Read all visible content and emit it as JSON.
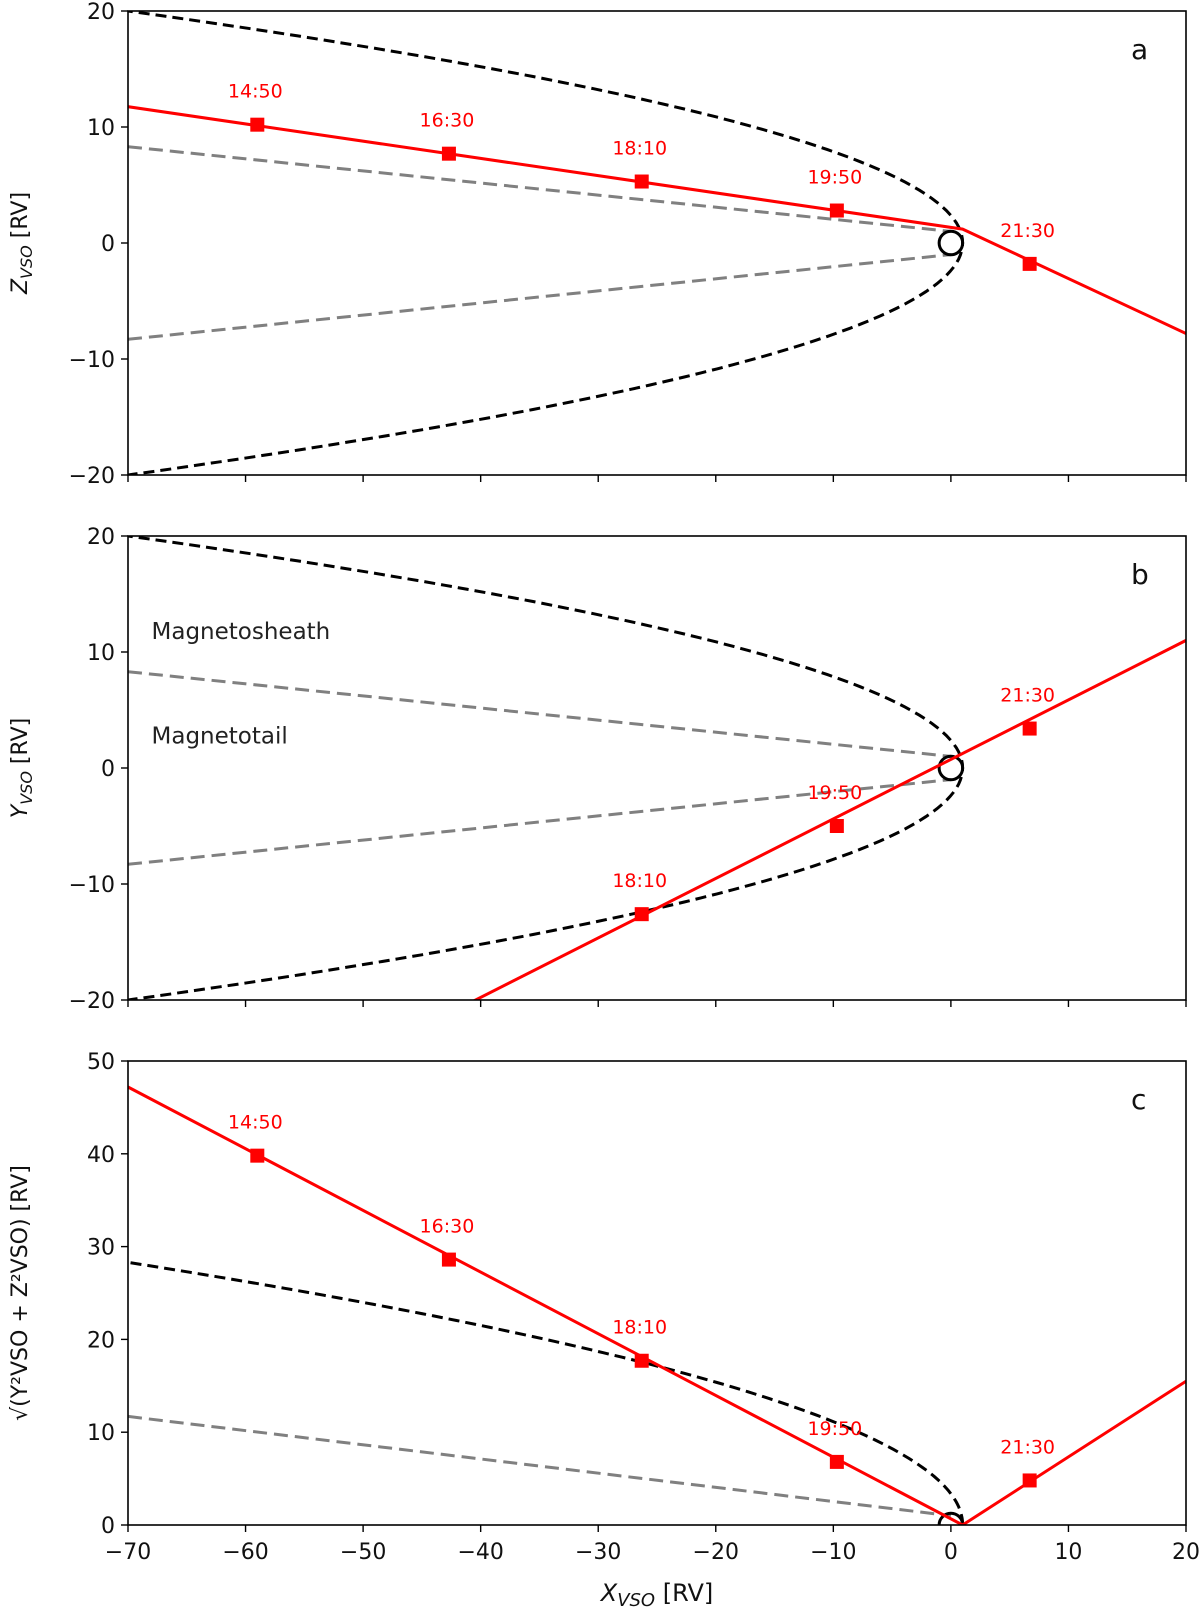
{
  "chart_data": [
    {
      "type": "line",
      "panel_label": "a",
      "ylabel_main": "Z",
      "ylabel_sub": "VSO",
      "ylabel_unit": "[RV]",
      "xlim": [
        -70,
        20
      ],
      "ylim": [
        -20,
        20
      ],
      "xticks": [
        -70,
        -60,
        -50,
        -40,
        -30,
        -20,
        -10,
        0,
        10,
        20
      ],
      "yticks": [
        -20,
        -10,
        0,
        10,
        20
      ],
      "trajectory": {
        "color": "#ff0000",
        "x": [
          -73,
          1,
          20
        ],
        "y": [
          12.2,
          1.2,
          -7.8
        ]
      },
      "markers": [
        {
          "x": -59.0,
          "y": 10.2,
          "label": "14:50"
        },
        {
          "x": -42.7,
          "y": 7.7,
          "label": "16:30"
        },
        {
          "x": -26.3,
          "y": 5.3,
          "label": "18:10"
        },
        {
          "x": -9.7,
          "y": 2.8,
          "label": "19:50"
        },
        {
          "x": 6.7,
          "y": -1.8,
          "label": "21:30"
        }
      ],
      "bow_shock": {
        "color": "#000000",
        "nose_x": 1.0,
        "y_at_x_minus_70": 20.0
      },
      "tail_boundary": {
        "color": "#808080",
        "x": [
          -70,
          0
        ],
        "y_upper": [
          8.3,
          1.0
        ],
        "y_lower": [
          -8.3,
          -1.0
        ]
      },
      "venus": {
        "x": 0,
        "y": 0,
        "radius": 1
      },
      "annotations": []
    },
    {
      "type": "line",
      "panel_label": "b",
      "ylabel_main": "Y",
      "ylabel_sub": "VSO",
      "ylabel_unit": "[RV]",
      "xlim": [
        -70,
        20
      ],
      "ylim": [
        -20,
        20
      ],
      "xticks": [
        -70,
        -60,
        -50,
        -40,
        -30,
        -20,
        -10,
        0,
        10,
        20
      ],
      "yticks": [
        -20,
        -10,
        0,
        10,
        20
      ],
      "trajectory": {
        "color": "#ff0000",
        "x": [
          -42,
          20
        ],
        "y": [
          -20.8,
          11.0
        ]
      },
      "markers": [
        {
          "x": -26.3,
          "y": -12.6,
          "label": "18:10"
        },
        {
          "x": -9.7,
          "y": -5.0,
          "label": "19:50"
        },
        {
          "x": 6.7,
          "y": 3.4,
          "label": "21:30"
        }
      ],
      "bow_shock": {
        "color": "#000000",
        "nose_x": 1.0,
        "y_at_x_minus_70": 20.0
      },
      "tail_boundary": {
        "color": "#808080",
        "x": [
          -70,
          0
        ],
        "y_upper": [
          8.3,
          1.0
        ],
        "y_lower": [
          -8.3,
          -1.0
        ]
      },
      "venus": {
        "x": 0,
        "y": 0,
        "radius": 1
      },
      "annotations": [
        {
          "text": "Magnetosheath",
          "x": -68.0,
          "y": 11.8
        },
        {
          "text": "Magnetotail",
          "x": -68.0,
          "y": 2.8
        }
      ]
    },
    {
      "type": "line",
      "panel_label": "c",
      "ylabel_main": "√(Y²VSO + Z²VSO)",
      "ylabel_sub": "",
      "ylabel_unit": "[RV]",
      "xlabel_main": "X",
      "xlabel_sub": "VSO",
      "xlabel_unit": "[RV]",
      "xlim": [
        -70,
        20
      ],
      "ylim": [
        0,
        50
      ],
      "xticks": [
        -70,
        -60,
        -50,
        -40,
        -30,
        -20,
        -10,
        0,
        10,
        20
      ],
      "yticks": [
        0,
        10,
        20,
        30,
        40,
        50
      ],
      "trajectory": {
        "color": "#ff0000",
        "x": [
          -70,
          1,
          20
        ],
        "y": [
          47.2,
          0.0,
          15.5
        ]
      },
      "markers": [
        {
          "x": -59.0,
          "y": 39.8,
          "label": "14:50"
        },
        {
          "x": -42.7,
          "y": 28.6,
          "label": "16:30"
        },
        {
          "x": -26.3,
          "y": 17.7,
          "label": "18:10"
        },
        {
          "x": -9.7,
          "y": 6.8,
          "label": "19:50"
        },
        {
          "x": 6.7,
          "y": 4.8,
          "label": "21:30"
        }
      ],
      "bow_shock": {
        "color": "#000000",
        "nose_x": 1.0,
        "y_at_x_minus_70": 28.3,
        "upper_only": true
      },
      "tail_boundary": {
        "color": "#808080",
        "x": [
          -70,
          0
        ],
        "y_upper": [
          11.7,
          1.0
        ]
      },
      "venus": {
        "x": 0,
        "y": 0,
        "radius": 1
      },
      "annotations": []
    }
  ]
}
